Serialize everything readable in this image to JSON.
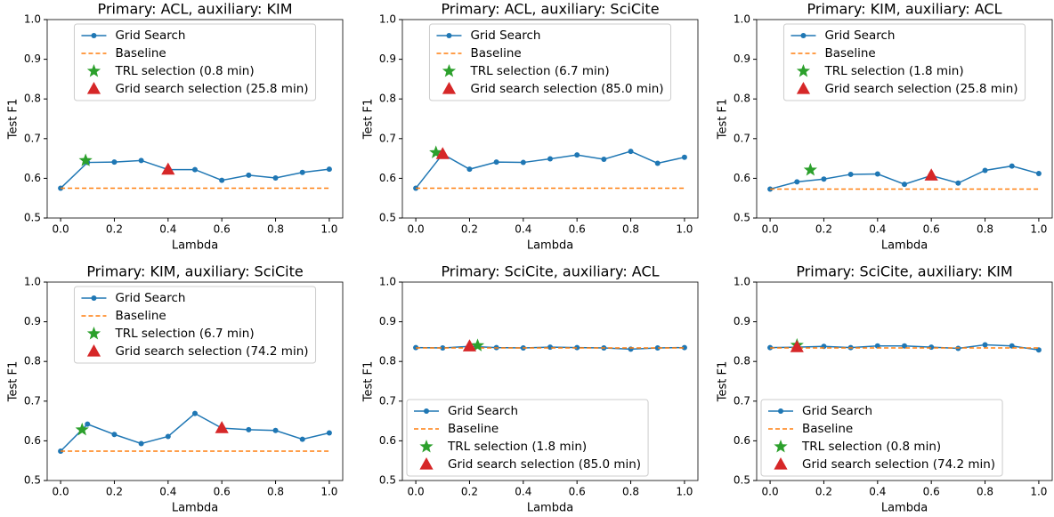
{
  "chart_data": [
    {
      "type": "line",
      "title": "Primary: ACL, auxiliary: KIM",
      "xlabel": "Lambda",
      "ylabel": "Test F1",
      "legend": "upper center",
      "x": [
        0,
        0.1,
        0.2,
        0.3,
        0.4,
        0.5,
        0.6,
        0.7,
        0.8,
        0.9,
        1
      ],
      "xlim": [
        -0.05,
        1.05
      ],
      "xticks": [
        {
          "value": 0,
          "label": "0.0"
        },
        0.2,
        0.4,
        0.6,
        0.8,
        {
          "value": 1,
          "label": "1.0"
        }
      ],
      "ylim": [
        0.5,
        1
      ],
      "yticks": [
        0.5,
        0.6,
        0.7,
        0.8,
        0.9,
        {
          "value": 1,
          "label": "1.0"
        }
      ],
      "series": [
        {
          "name": "Grid Search",
          "color": "#1f77b4",
          "values": [
            0.575,
            0.64,
            0.641,
            0.645,
            0.622,
            0.622,
            0.595,
            0.608,
            0.601,
            0.615,
            0.623
          ]
        },
        {
          "name": "Baseline",
          "color": "#ff7f0e",
          "values": [
            0.575,
            0.575,
            0.575,
            0.575,
            0.575,
            0.575,
            0.575,
            0.575,
            0.575,
            0.575,
            0.575
          ]
        }
      ],
      "points": [
        {
          "name": "TRL selection (0.8 min)",
          "color": "#2ca02c",
          "marker": "star",
          "x": 0.093,
          "y": 0.645
        },
        {
          "name": "Grid search selection (25.8 min)",
          "color": "#d62728",
          "marker": "triangle",
          "x": 0.4,
          "y": 0.622
        }
      ]
    },
    {
      "type": "line",
      "title": "Primary: ACL, auxiliary: SciCite",
      "xlabel": "Lambda",
      "ylabel": "Test F1",
      "legend": "upper center",
      "x": [
        0,
        0.1,
        0.2,
        0.3,
        0.4,
        0.5,
        0.6,
        0.7,
        0.8,
        0.9,
        1
      ],
      "xlim": [
        -0.05,
        1.05
      ],
      "xticks": [
        {
          "value": 0,
          "label": "0.0"
        },
        0.2,
        0.4,
        0.6,
        0.8,
        {
          "value": 1,
          "label": "1.0"
        }
      ],
      "ylim": [
        0.5,
        1
      ],
      "yticks": [
        0.5,
        0.6,
        0.7,
        0.8,
        0.9,
        {
          "value": 1,
          "label": "1.0"
        }
      ],
      "series": [
        {
          "name": "Grid Search",
          "color": "#1f77b4",
          "values": [
            0.575,
            0.661,
            0.623,
            0.641,
            0.64,
            0.649,
            0.659,
            0.648,
            0.668,
            0.638,
            0.653
          ]
        },
        {
          "name": "Baseline",
          "color": "#ff7f0e",
          "values": [
            0.575,
            0.575,
            0.575,
            0.575,
            0.575,
            0.575,
            0.575,
            0.575,
            0.575,
            0.575,
            0.575
          ]
        }
      ],
      "points": [
        {
          "name": "TRL selection (6.7 min)",
          "color": "#2ca02c",
          "marker": "star",
          "x": 0.075,
          "y": 0.665
        },
        {
          "name": "Grid search selection (85.0 min)",
          "color": "#d62728",
          "marker": "triangle",
          "x": 0.1,
          "y": 0.661
        }
      ]
    },
    {
      "type": "line",
      "title": "Primary: KIM, auxiliary: ACL",
      "xlabel": "Lambda",
      "ylabel": "Test F1",
      "legend": "upper center",
      "x": [
        0,
        0.1,
        0.2,
        0.3,
        0.4,
        0.5,
        0.6,
        0.7,
        0.8,
        0.9,
        1
      ],
      "xlim": [
        -0.05,
        1.05
      ],
      "xticks": [
        {
          "value": 0,
          "label": "0.0"
        },
        0.2,
        0.4,
        0.6,
        0.8,
        {
          "value": 1,
          "label": "1.0"
        }
      ],
      "ylim": [
        0.5,
        1
      ],
      "yticks": [
        0.5,
        0.6,
        0.7,
        0.8,
        0.9,
        {
          "value": 1,
          "label": "1.0"
        }
      ],
      "series": [
        {
          "name": "Grid Search",
          "color": "#1f77b4",
          "values": [
            0.573,
            0.591,
            0.598,
            0.61,
            0.611,
            0.585,
            0.607,
            0.588,
            0.62,
            0.631,
            0.612
          ]
        },
        {
          "name": "Baseline",
          "color": "#ff7f0e",
          "values": [
            0.573,
            0.573,
            0.573,
            0.573,
            0.573,
            0.573,
            0.573,
            0.573,
            0.573,
            0.573,
            0.573
          ]
        }
      ],
      "points": [
        {
          "name": "TRL selection (1.8 min)",
          "color": "#2ca02c",
          "marker": "star",
          "x": 0.15,
          "y": 0.621
        },
        {
          "name": "Grid search selection (25.8 min)",
          "color": "#d62728",
          "marker": "triangle",
          "x": 0.6,
          "y": 0.607
        }
      ]
    },
    {
      "type": "line",
      "title": "Primary: KIM, auxiliary: SciCite",
      "xlabel": "Lambda",
      "ylabel": "Test F1",
      "legend": "upper center",
      "x": [
        0,
        0.1,
        0.2,
        0.3,
        0.4,
        0.5,
        0.6,
        0.7,
        0.8,
        0.9,
        1
      ],
      "xlim": [
        -0.05,
        1.05
      ],
      "xticks": [
        {
          "value": 0,
          "label": "0.0"
        },
        0.2,
        0.4,
        0.6,
        0.8,
        {
          "value": 1,
          "label": "1.0"
        }
      ],
      "ylim": [
        0.5,
        1
      ],
      "yticks": [
        0.5,
        0.6,
        0.7,
        0.8,
        0.9,
        {
          "value": 1,
          "label": "1.0"
        }
      ],
      "series": [
        {
          "name": "Grid Search",
          "color": "#1f77b4",
          "values": [
            0.574,
            0.642,
            0.616,
            0.593,
            0.611,
            0.669,
            0.632,
            0.628,
            0.626,
            0.604,
            0.62
          ]
        },
        {
          "name": "Baseline",
          "color": "#ff7f0e",
          "values": [
            0.574,
            0.574,
            0.574,
            0.574,
            0.574,
            0.574,
            0.574,
            0.574,
            0.574,
            0.574,
            0.574
          ]
        }
      ],
      "points": [
        {
          "name": "TRL selection (6.7 min)",
          "color": "#2ca02c",
          "marker": "star",
          "x": 0.08,
          "y": 0.628
        },
        {
          "name": "Grid search selection (74.2 min)",
          "color": "#d62728",
          "marker": "triangle",
          "x": 0.6,
          "y": 0.632
        }
      ]
    },
    {
      "type": "line",
      "title": "Primary: SciCite, auxiliary: ACL",
      "xlabel": "Lambda",
      "ylabel": "Test F1",
      "legend": "lower left",
      "x": [
        0,
        0.1,
        0.2,
        0.3,
        0.4,
        0.5,
        0.6,
        0.7,
        0.8,
        0.9,
        1
      ],
      "xlim": [
        -0.05,
        1.05
      ],
      "xticks": [
        {
          "value": 0,
          "label": "0.0"
        },
        0.2,
        0.4,
        0.6,
        0.8,
        {
          "value": 1,
          "label": "1.0"
        }
      ],
      "ylim": [
        0.5,
        1
      ],
      "yticks": [
        0.5,
        0.6,
        0.7,
        0.8,
        0.9,
        {
          "value": 1,
          "label": "1.0"
        }
      ],
      "series": [
        {
          "name": "Grid Search",
          "color": "#1f77b4",
          "values": [
            0.835,
            0.834,
            0.838,
            0.835,
            0.834,
            0.836,
            0.835,
            0.834,
            0.831,
            0.834,
            0.835
          ]
        },
        {
          "name": "Baseline",
          "color": "#ff7f0e",
          "values": [
            0.834,
            0.834,
            0.834,
            0.834,
            0.834,
            0.834,
            0.834,
            0.834,
            0.834,
            0.834,
            0.834
          ]
        }
      ],
      "points": [
        {
          "name": "TRL selection (1.8 min)",
          "color": "#2ca02c",
          "marker": "star",
          "x": 0.23,
          "y": 0.84
        },
        {
          "name": "Grid search selection (85.0 min)",
          "color": "#d62728",
          "marker": "triangle",
          "x": 0.2,
          "y": 0.838
        }
      ]
    },
    {
      "type": "line",
      "title": "Primary: SciCite, auxiliary: KIM",
      "xlabel": "Lambda",
      "ylabel": "Test F1",
      "legend": "lower left",
      "x": [
        0,
        0.1,
        0.2,
        0.3,
        0.4,
        0.5,
        0.6,
        0.7,
        0.8,
        0.9,
        1
      ],
      "xlim": [
        -0.05,
        1.05
      ],
      "xticks": [
        {
          "value": 0,
          "label": "0.0"
        },
        0.2,
        0.4,
        0.6,
        0.8,
        {
          "value": 1,
          "label": "1.0"
        }
      ],
      "ylim": [
        0.5,
        1
      ],
      "yticks": [
        0.5,
        0.6,
        0.7,
        0.8,
        0.9,
        {
          "value": 1,
          "label": "1.0"
        }
      ],
      "series": [
        {
          "name": "Grid Search",
          "color": "#1f77b4",
          "values": [
            0.835,
            0.836,
            0.838,
            0.835,
            0.839,
            0.839,
            0.836,
            0.833,
            0.842,
            0.839,
            0.829
          ]
        },
        {
          "name": "Baseline",
          "color": "#ff7f0e",
          "values": [
            0.834,
            0.834,
            0.834,
            0.834,
            0.834,
            0.834,
            0.834,
            0.834,
            0.834,
            0.834,
            0.834
          ]
        }
      ],
      "points": [
        {
          "name": "TRL selection (0.8 min)",
          "color": "#2ca02c",
          "marker": "star",
          "x": 0.1,
          "y": 0.841
        },
        {
          "name": "Grid search selection (74.2 min)",
          "color": "#d62728",
          "marker": "triangle",
          "x": 0.1,
          "y": 0.836
        }
      ]
    }
  ]
}
